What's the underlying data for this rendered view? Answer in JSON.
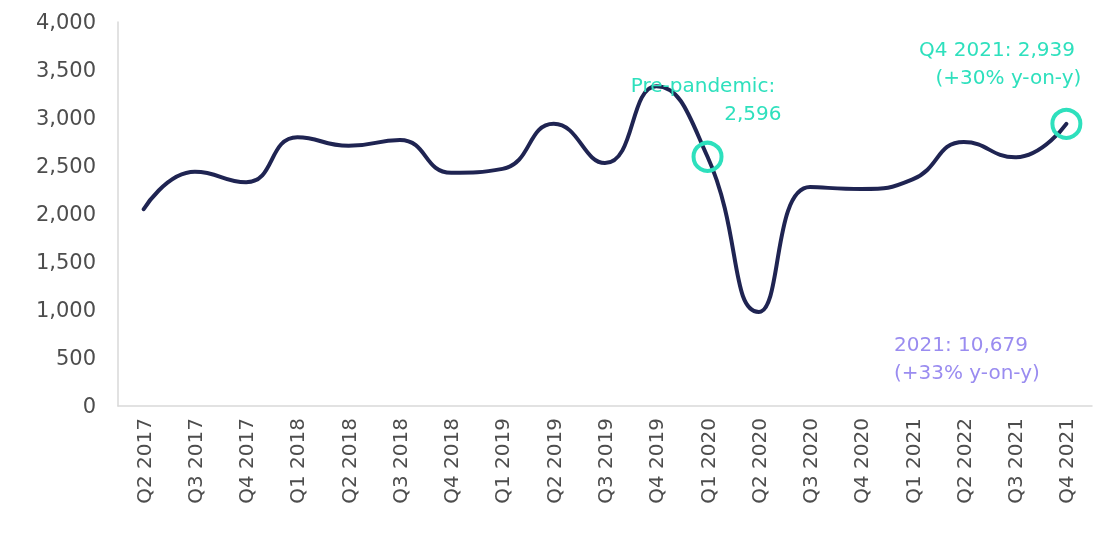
{
  "chart_data": {
    "type": "line",
    "categories": [
      "Q2 2017",
      "Q3 2017",
      "Q4 2017",
      "Q1 2018",
      "Q2 2018",
      "Q3 2018",
      "Q4 2018",
      "Q1 2019",
      "Q2 2019",
      "Q3 2019",
      "Q4 2019",
      "Q1 2020",
      "Q2 2020",
      "Q3 2020",
      "Q4 2020",
      "Q1 2021",
      "Q2 2022",
      "Q3 2021",
      "Q4 2021"
    ],
    "series": [
      {
        "color": "#1f2452",
        "values": [
          2050,
          2440,
          2330,
          2800,
          2710,
          2770,
          2430,
          2470,
          2940,
          2530,
          3330,
          2596,
          980,
          2280,
          2260,
          2360,
          2750,
          2590,
          2939
        ]
      }
    ],
    "ylim": [
      0,
      4000
    ],
    "yticks": [
      0,
      500,
      {
        "value": 1000,
        "label": "1,000"
      },
      {
        "value": 1500,
        "label": "1,500"
      },
      {
        "value": 2000,
        "label": "2,000"
      },
      {
        "value": 2500,
        "label": "2,500"
      },
      {
        "value": 3000,
        "label": "3,000"
      },
      {
        "value": 3500,
        "label": "3,500"
      },
      {
        "value": 4000,
        "label": "4,000"
      }
    ],
    "grid": false,
    "marker": "none",
    "line_style": "solid",
    "annotations": [
      {
        "text": "Pre-pandemic: 2,596",
        "x": "Q1 2020",
        "y": 2596
      },
      {
        "text": "Q4 2021: 2,939 (+30% y-on-y)",
        "x": "Q4 2021",
        "y": 2939
      },
      "2021: 10,679 (+33% y-on-y)"
    ]
  }
}
